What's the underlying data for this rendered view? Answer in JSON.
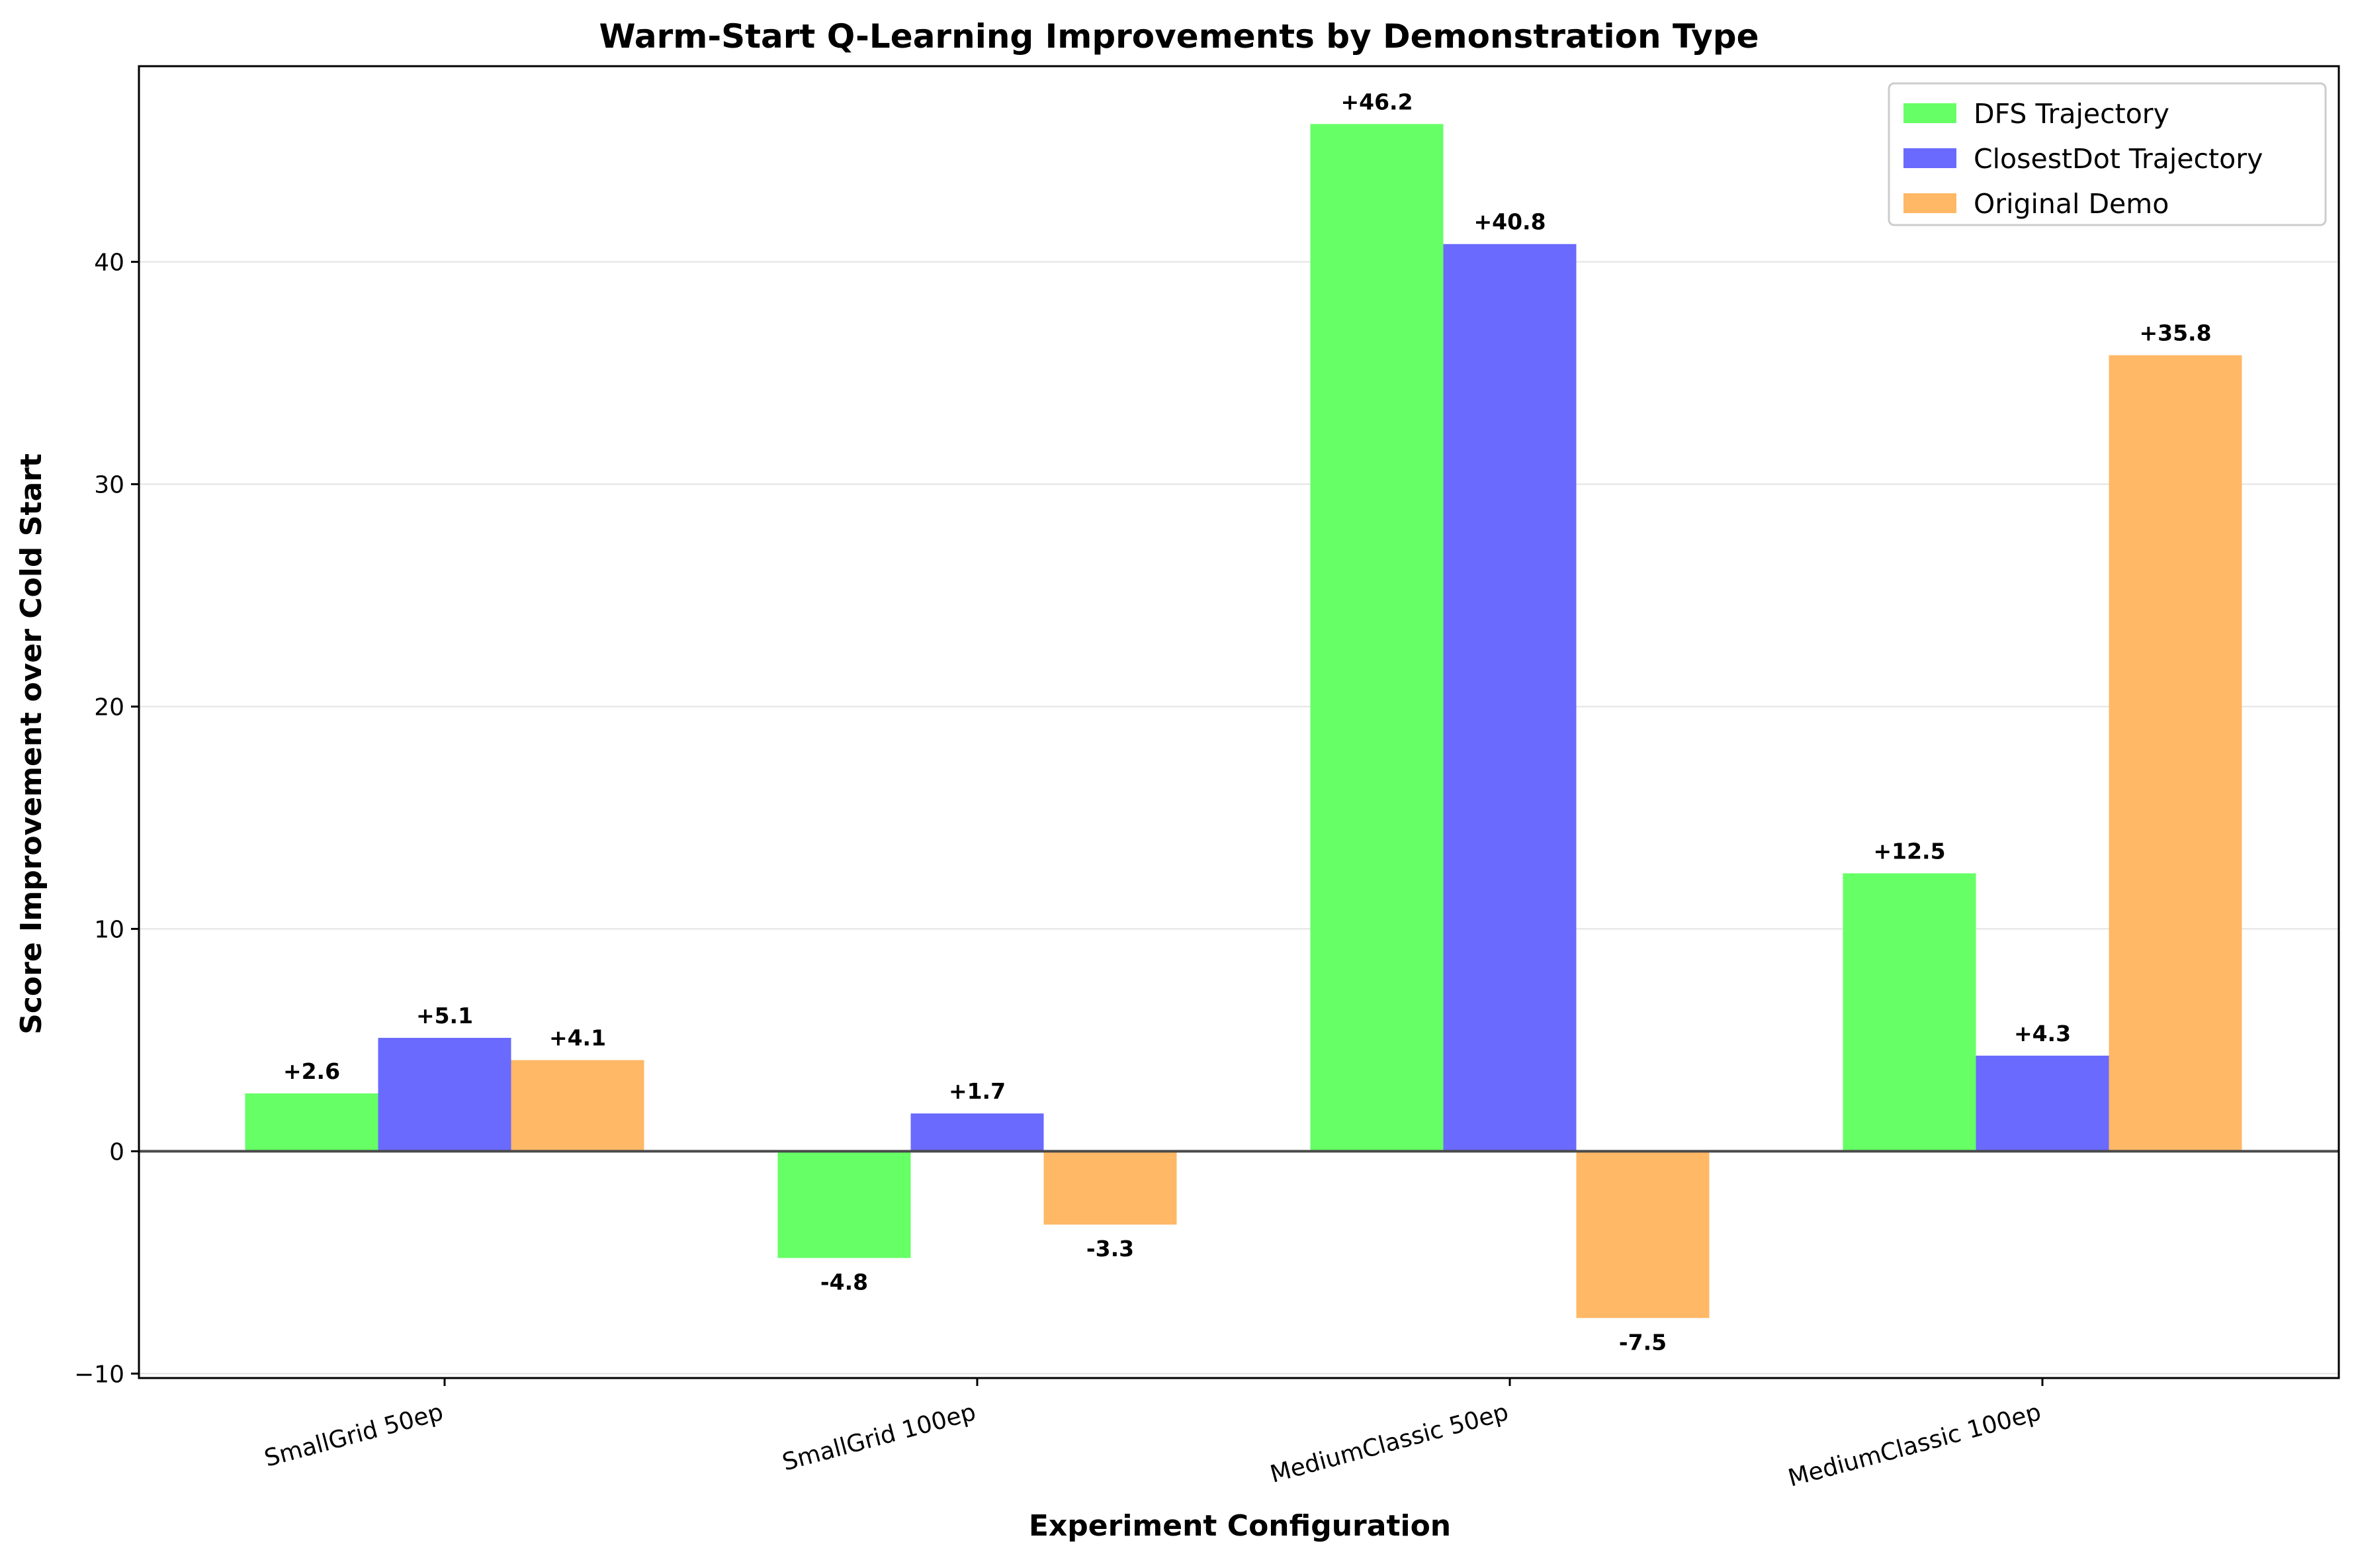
{
  "chart_data": {
    "type": "bar",
    "title": "Warm-Start Q-Learning Improvements by Demonstration Type",
    "xlabel": "Experiment Configuration",
    "ylabel": "Score Improvement over Cold Start",
    "categories": [
      "SmallGrid 50ep",
      "SmallGrid 100ep",
      "MediumClassic 50ep",
      "MediumClassic 100ep"
    ],
    "series": [
      {
        "name": "DFS Trajectory",
        "color": "#66ff66",
        "values": [
          2.6,
          -4.8,
          46.2,
          12.5
        ],
        "labels": [
          "+2.6",
          "-4.8",
          "+46.2",
          "+12.5"
        ]
      },
      {
        "name": "ClosestDot Trajectory",
        "color": "#6a6aff",
        "values": [
          5.1,
          1.7,
          40.8,
          4.3
        ],
        "labels": [
          "+5.1",
          "+1.7",
          "+40.8",
          "+4.3"
        ]
      },
      {
        "name": "Original Demo",
        "color": "#ffb866",
        "values": [
          4.1,
          -3.3,
          -7.5,
          35.8
        ],
        "labels": [
          "+4.1",
          "-3.3",
          "-7.5",
          "+35.8"
        ]
      }
    ],
    "ylim": [
      -10.2,
      48.8
    ],
    "yticks": [
      -10,
      0,
      10,
      20,
      30,
      40
    ],
    "ytick_labels": [
      "−10",
      "0",
      "10",
      "20",
      "30",
      "40"
    ],
    "grid": "horizontal",
    "legend_position": "top-right",
    "zero_line": true
  }
}
